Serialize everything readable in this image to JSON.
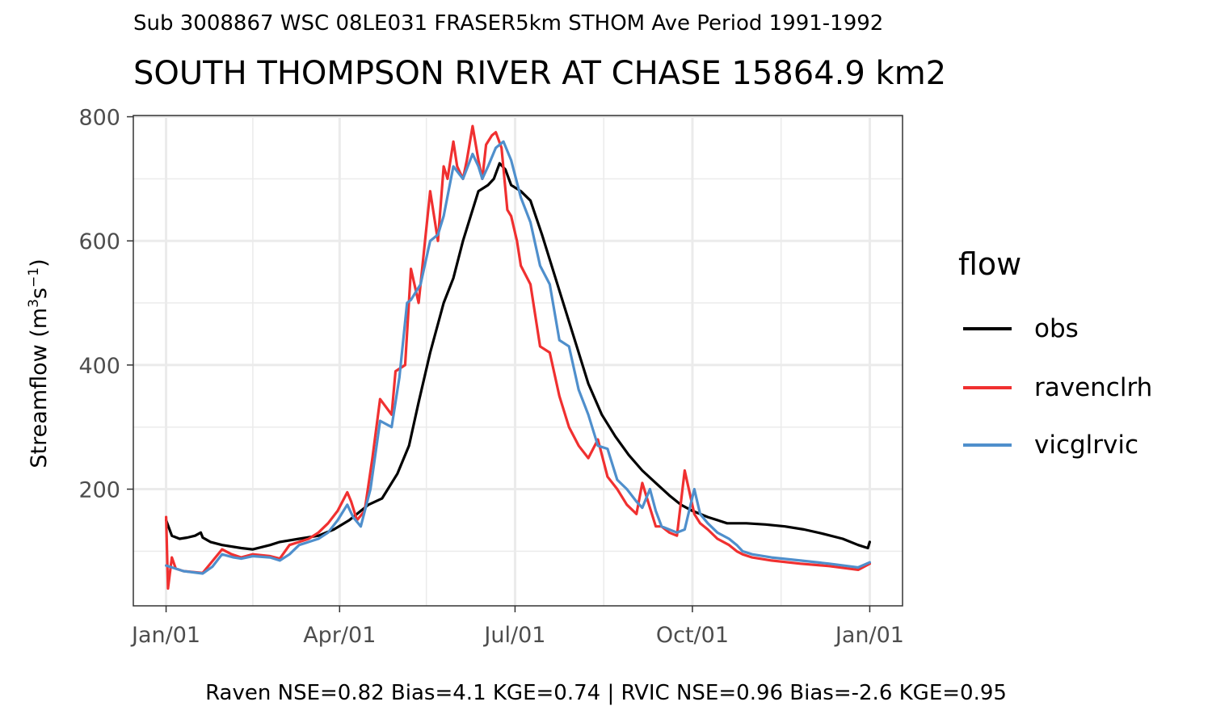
{
  "subtitle": "Sub 3008867 WSC 08LE031 FRASER5km STHOM Ave Period 1991-1992",
  "title": "SOUTH THOMPSON RIVER AT CHASE 15864.9 km2",
  "caption": "Raven NSE=0.82 Bias=4.1 KGE=0.74 | RVIC NSE=0.96 Bias=-2.6 KGE=0.95",
  "legend": {
    "title": "flow",
    "items": [
      {
        "label": "obs",
        "color": "#000000"
      },
      {
        "label": "ravenclrh",
        "color": "#f03030"
      },
      {
        "label": "vicglrvic",
        "color": "#4f8fcc"
      }
    ]
  },
  "chart_data": {
    "type": "line",
    "title": "SOUTH THOMPSON RIVER AT CHASE 15864.9 km2",
    "subtitle": "Sub 3008867 WSC 08LE031 FRASER5km STHOM Ave Period 1991-1992",
    "ylabel": "Streamflow (m3s-1)",
    "xlabel": "",
    "x_unit": "day of year",
    "x_ticks": [
      {
        "label": "Jan/01",
        "value": 1
      },
      {
        "label": "Apr/01",
        "value": 91
      },
      {
        "label": "Jul/01",
        "value": 182
      },
      {
        "label": "Oct/01",
        "value": 274
      },
      {
        "label": "Jan/01",
        "value": 366
      }
    ],
    "x_minor": [
      46,
      136,
      228,
      320
    ],
    "y_ticks": [
      200,
      400,
      600,
      800
    ],
    "y_minor": [
      100,
      300,
      500,
      700
    ],
    "xlim": [
      -16,
      383
    ],
    "ylim": [
      12,
      802
    ],
    "grid": true,
    "legend_position": "right",
    "series": [
      {
        "name": "obs",
        "color": "#000000",
        "x": [
          1,
          4,
          8,
          12,
          16,
          19,
          20,
          24,
          30,
          40,
          46,
          55,
          60,
          70,
          80,
          88,
          96,
          100,
          106,
          113,
          121,
          127,
          132,
          138,
          145,
          150,
          155,
          159,
          163,
          168,
          171,
          174,
          177,
          180,
          185,
          190,
          196,
          205,
          214,
          220,
          227,
          234,
          241,
          248,
          255,
          262,
          268,
          274,
          282,
          292,
          302,
          312,
          322,
          332,
          342,
          352,
          360,
          365,
          366
        ],
        "y": [
          150,
          125,
          120,
          122,
          125,
          130,
          122,
          115,
          110,
          105,
          103,
          110,
          115,
          120,
          125,
          135,
          150,
          160,
          175,
          185,
          225,
          270,
          340,
          420,
          500,
          540,
          600,
          640,
          680,
          690,
          700,
          725,
          715,
          690,
          680,
          665,
          610,
          520,
          430,
          370,
          320,
          285,
          255,
          230,
          210,
          190,
          175,
          165,
          155,
          145,
          145,
          143,
          140,
          135,
          128,
          120,
          110,
          105,
          115
        ]
      },
      {
        "name": "ravenclrh",
        "color": "#f03030",
        "x": [
          1,
          2,
          4,
          6,
          10,
          20,
          30,
          35,
          40,
          46,
          55,
          60,
          65,
          70,
          75,
          80,
          85,
          90,
          95,
          97,
          100,
          104,
          108,
          112,
          118,
          120,
          125,
          128,
          132,
          138,
          142,
          145,
          147,
          150,
          152,
          155,
          157,
          160,
          163,
          165,
          167,
          170,
          172,
          175,
          178,
          180,
          183,
          185,
          190,
          195,
          200,
          205,
          210,
          215,
          220,
          225,
          230,
          235,
          240,
          245,
          248,
          252,
          255,
          258,
          262,
          266,
          270,
          275,
          278,
          282,
          287,
          293,
          297,
          300,
          305,
          315,
          330,
          345,
          360,
          366
        ],
        "y": [
          155,
          40,
          90,
          72,
          68,
          65,
          103,
          95,
          90,
          95,
          92,
          88,
          110,
          115,
          120,
          130,
          145,
          165,
          195,
          180,
          150,
          165,
          250,
          345,
          320,
          390,
          400,
          555,
          500,
          680,
          600,
          720,
          700,
          760,
          720,
          700,
          730,
          785,
          730,
          700,
          755,
          770,
          775,
          750,
          650,
          640,
          600,
          560,
          530,
          430,
          420,
          350,
          300,
          270,
          250,
          280,
          220,
          200,
          175,
          160,
          210,
          170,
          140,
          140,
          130,
          125,
          230,
          160,
          145,
          135,
          120,
          110,
          100,
          95,
          90,
          85,
          80,
          76,
          70,
          80
        ]
      },
      {
        "name": "vicglrvic",
        "color": "#4f8fcc",
        "x": [
          1,
          10,
          20,
          25,
          30,
          36,
          40,
          46,
          55,
          60,
          65,
          70,
          75,
          80,
          85,
          90,
          95,
          98,
          102,
          107,
          112,
          118,
          122,
          126,
          128,
          133,
          138,
          142,
          145,
          150,
          155,
          160,
          163,
          165,
          168,
          172,
          176,
          180,
          185,
          190,
          195,
          200,
          205,
          210,
          215,
          220,
          225,
          230,
          235,
          240,
          245,
          248,
          252,
          255,
          258,
          262,
          266,
          270,
          275,
          278,
          282,
          287,
          293,
          297,
          300,
          305,
          315,
          330,
          345,
          360,
          366
        ],
        "y": [
          77,
          68,
          64,
          75,
          95,
          90,
          88,
          92,
          90,
          85,
          95,
          110,
          115,
          120,
          130,
          150,
          175,
          155,
          140,
          200,
          310,
          300,
          380,
          500,
          505,
          530,
          600,
          610,
          640,
          720,
          700,
          740,
          720,
          700,
          720,
          750,
          760,
          730,
          670,
          630,
          560,
          530,
          440,
          430,
          360,
          320,
          270,
          265,
          215,
          200,
          180,
          170,
          200,
          165,
          140,
          135,
          130,
          135,
          200,
          160,
          145,
          130,
          120,
          110,
          100,
          95,
          90,
          85,
          80,
          74,
          82
        ]
      }
    ]
  }
}
